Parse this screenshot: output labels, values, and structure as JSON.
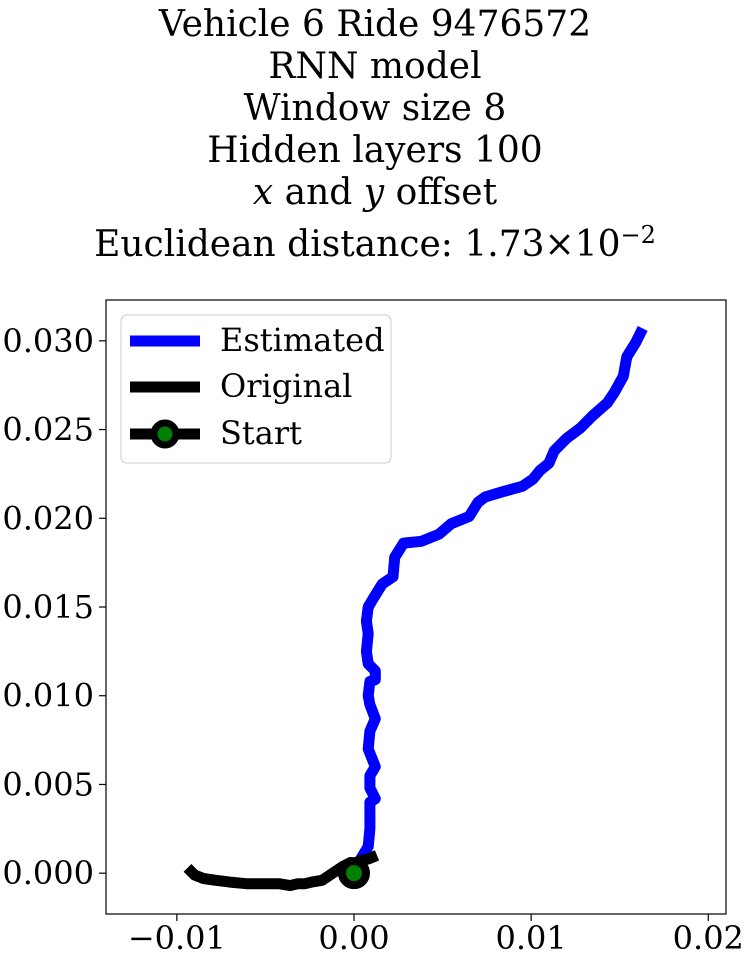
{
  "title_lines": [
    "Vehicle 6 Ride 9476572",
    "RNN model",
    "Window size 8",
    "Hidden layers 100",
    "x and y offset",
    "Euclidean distance: 1.73×10⁻²"
  ],
  "title_parts": {
    "x_var": "x",
    "and_text": " and ",
    "y_var": "y",
    "offset_text": " offset",
    "dist_prefix": "Euclidean distance: ",
    "dist_mantissa": "1.73",
    "dist_times": "×",
    "dist_base": "10",
    "dist_exp": "−2"
  },
  "chart_data": {
    "type": "line",
    "xlim": [
      -0.014,
      0.021
    ],
    "ylim": [
      -0.0023,
      0.0323
    ],
    "xticks": [
      -0.01,
      0.0,
      0.01,
      0.02
    ],
    "xtick_labels": [
      "−0.01",
      "0.00",
      "0.01",
      "0.02"
    ],
    "yticks": [
      0.0,
      0.005,
      0.01,
      0.015,
      0.02,
      0.025,
      0.03
    ],
    "ytick_labels": [
      "0.000",
      "0.005",
      "0.010",
      "0.015",
      "0.020",
      "0.025",
      "0.030"
    ],
    "grid": false,
    "legend": {
      "position": "top-left",
      "entries": [
        "Estimated",
        "Original",
        "Start"
      ]
    },
    "series": [
      {
        "name": "Estimated",
        "color": "#0000ff",
        "x": [
          0.0,
          0.0002,
          0.0008,
          0.0009,
          0.0009,
          0.0012,
          0.0009,
          0.0009,
          0.0012,
          0.0008,
          0.0009,
          0.0012,
          0.0009,
          0.0008,
          0.0009,
          0.0012,
          0.0012,
          0.0008,
          0.0007,
          0.0008,
          0.0007,
          0.0008,
          0.0011,
          0.0016,
          0.0022,
          0.0023,
          0.0028,
          0.0038,
          0.0048,
          0.0055,
          0.0065,
          0.007,
          0.0074,
          0.0084,
          0.0095,
          0.0101,
          0.0105,
          0.011,
          0.0113,
          0.0115,
          0.012,
          0.0128,
          0.0135,
          0.0143,
          0.0147,
          0.0152,
          0.0154,
          0.0159,
          0.0163
        ],
        "y": [
          0.0,
          0.0005,
          0.0015,
          0.0025,
          0.004,
          0.0042,
          0.0048,
          0.0055,
          0.006,
          0.007,
          0.008,
          0.0087,
          0.0095,
          0.01,
          0.0108,
          0.0109,
          0.0114,
          0.0118,
          0.0125,
          0.0135,
          0.0142,
          0.015,
          0.0155,
          0.0163,
          0.0167,
          0.0178,
          0.0186,
          0.0187,
          0.0191,
          0.0197,
          0.0201,
          0.0209,
          0.0212,
          0.0215,
          0.0218,
          0.0222,
          0.0227,
          0.0231,
          0.0238,
          0.024,
          0.0245,
          0.0251,
          0.0258,
          0.0265,
          0.0271,
          0.028,
          0.0291,
          0.0299,
          0.0307
        ]
      },
      {
        "name": "Original",
        "color": "#000000",
        "x": [
          -0.0094,
          -0.009,
          -0.0085,
          -0.0078,
          -0.007,
          -0.006,
          -0.005,
          -0.0042,
          -0.0036,
          -0.0032,
          -0.0028,
          -0.0024,
          -0.0018,
          -0.0012,
          -0.0006,
          -0.0002,
          0.0,
          0.0003,
          0.0008,
          0.0013
        ],
        "y": [
          0.0003,
          -0.0001,
          -0.0003,
          -0.0004,
          -0.0005,
          -0.0006,
          -0.0006,
          -0.0006,
          -0.0007,
          -0.0006,
          -0.0006,
          -0.0005,
          -0.0004,
          0.0,
          0.0004,
          0.0006,
          0.0005,
          0.0007,
          0.0008,
          0.001
        ]
      }
    ],
    "start_point": {
      "name": "Start",
      "x": 0.0,
      "y": 0.0,
      "marker_color": "#008000"
    }
  }
}
